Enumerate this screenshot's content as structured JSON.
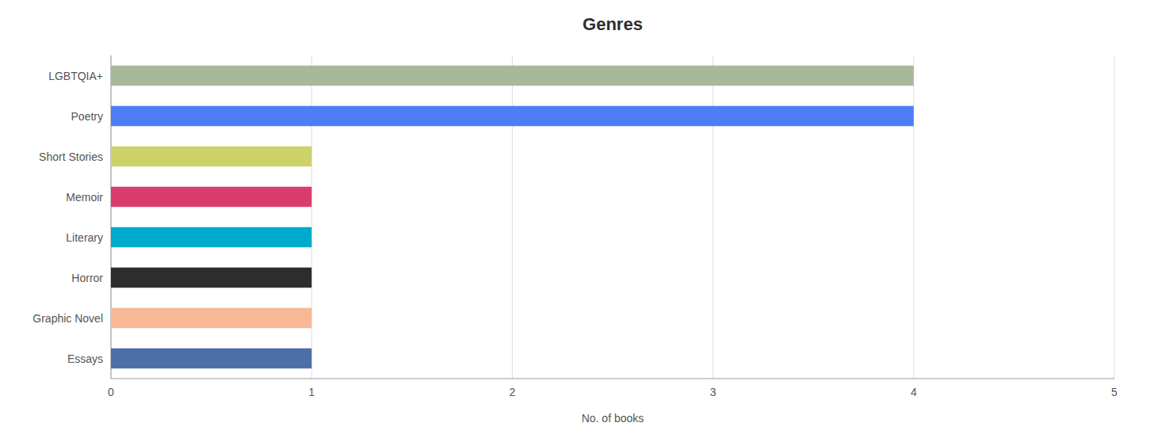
{
  "chart_data": {
    "type": "bar",
    "orientation": "horizontal",
    "title": "Genres",
    "categories": [
      "LGBTQIA+",
      "Poetry",
      "Short Stories",
      "Memoir",
      "Literary",
      "Horror",
      "Graphic Novel",
      "Essays"
    ],
    "values": [
      4,
      4,
      1,
      1,
      1,
      1,
      1,
      1
    ],
    "colors": [
      "#a8b89a",
      "#4d7ef7",
      "#cdd16a",
      "#d93d6e",
      "#00aacc",
      "#2d2d2d",
      "#f7b896",
      "#4d6fa8"
    ],
    "xlabel": "No. of books",
    "xlim": [
      0,
      5
    ],
    "xticks": [
      0,
      1,
      2,
      3,
      4,
      5
    ],
    "grid": true
  }
}
